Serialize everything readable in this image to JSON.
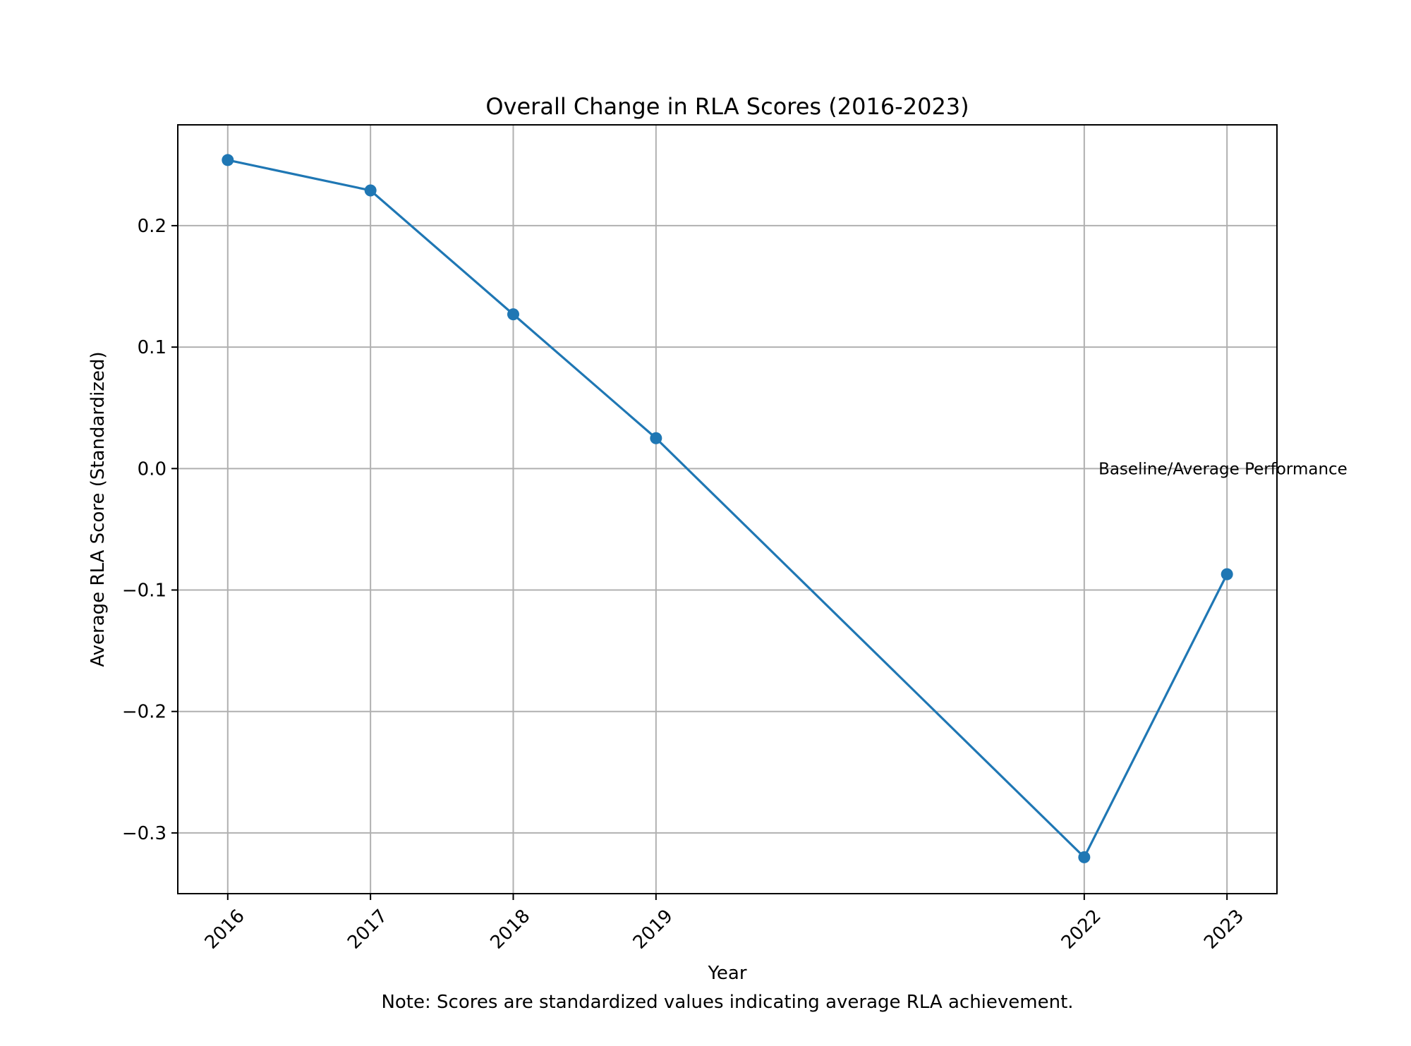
{
  "colors": {
    "series": "#1f77b4",
    "grid": "#b0b0b0",
    "axes": "#000000",
    "background": "#ffffff"
  },
  "chart_data": {
    "type": "line",
    "title": "Overall Change in RLA Scores (2016-2023)",
    "xlabel": "Year",
    "ylabel": "Average RLA Score (Standardized)",
    "x": [
      2016,
      2017,
      2018,
      2019,
      2022,
      2023
    ],
    "x_tick_labels": [
      "2016",
      "2017",
      "2018",
      "2019",
      "2022",
      "2023"
    ],
    "series": [
      {
        "values": [
          0.254,
          0.229,
          0.127,
          0.025,
          -0.32,
          -0.087
        ],
        "marker": "circle"
      }
    ],
    "xlim": [
      2015.65,
      2023.35
    ],
    "ylim": [
      -0.35,
      0.283
    ],
    "y_ticks": [
      0.2,
      0.1,
      0.0,
      -0.1,
      -0.2,
      -0.3
    ],
    "y_tick_labels": [
      "0.2",
      "0.1",
      "0.0",
      "−0.1",
      "−0.2",
      "−0.3"
    ],
    "grid": true,
    "legend": "none",
    "annotations": [
      {
        "text": "Baseline/Average Performance",
        "x": 2022.1,
        "y": 0.0
      }
    ],
    "note": "Note: Scores are standardized values indicating average RLA achievement."
  }
}
